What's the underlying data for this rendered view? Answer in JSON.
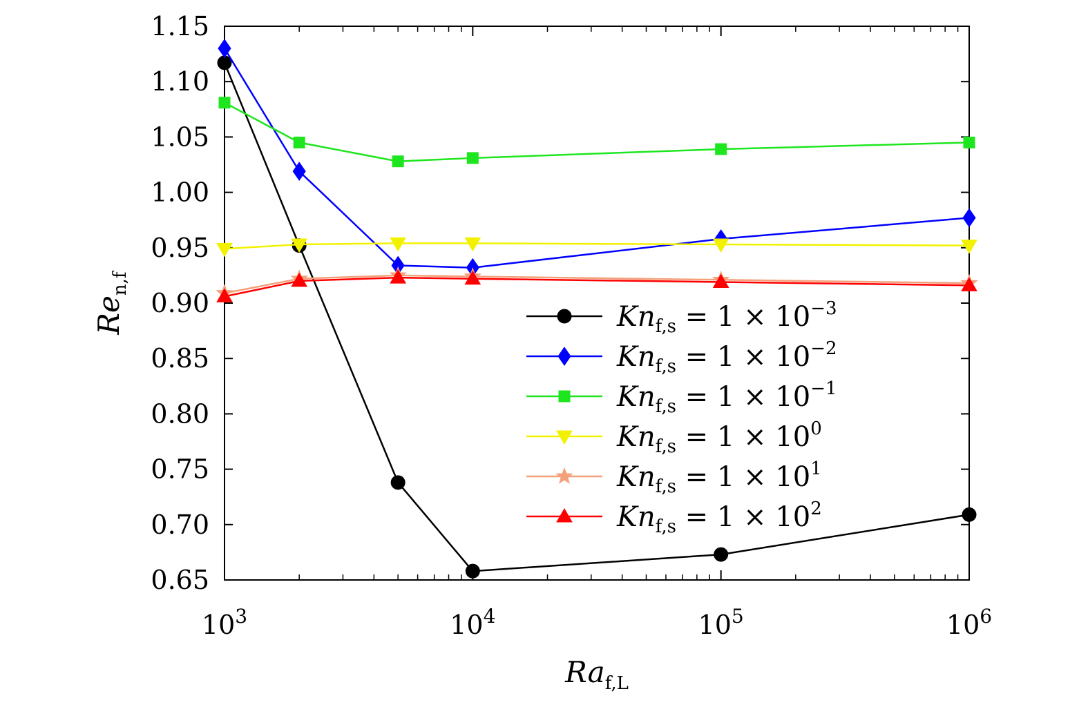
{
  "chart_data": {
    "type": "line",
    "x_scale": "log",
    "xlabel": {
      "main": "Ra",
      "sub": "f,L"
    },
    "ylabel": {
      "main": "Re",
      "sub": "n,f"
    },
    "xlim": [
      1000,
      1000000
    ],
    "ylim": [
      0.65,
      1.15
    ],
    "x_ticks": [
      {
        "value": 1000,
        "base": "10",
        "exp": "3"
      },
      {
        "value": 10000,
        "base": "10",
        "exp": "4"
      },
      {
        "value": 100000,
        "base": "10",
        "exp": "5"
      },
      {
        "value": 1000000,
        "base": "10",
        "exp": "6"
      }
    ],
    "y_ticks": [
      {
        "value": 0.65,
        "label": "0.65"
      },
      {
        "value": 0.7,
        "label": "0.70"
      },
      {
        "value": 0.75,
        "label": "0.75"
      },
      {
        "value": 0.8,
        "label": "0.80"
      },
      {
        "value": 0.85,
        "label": "0.85"
      },
      {
        "value": 0.9,
        "label": "0.90"
      },
      {
        "value": 0.95,
        "label": "0.95"
      },
      {
        "value": 1.0,
        "label": "1.00"
      },
      {
        "value": 1.05,
        "label": "1.05"
      },
      {
        "value": 1.1,
        "label": "1.10"
      },
      {
        "value": 1.15,
        "label": "1.15"
      }
    ],
    "x": [
      1000,
      2000,
      5000,
      10000,
      100000,
      1000000
    ],
    "legend_position": "right",
    "series": [
      {
        "name": "Kn_f,s = 1×10^-3",
        "legend": {
          "main": "Kn",
          "sub": "f,s",
          "rhs": " = 1 × 10",
          "exp": "−3"
        },
        "color": "#000000",
        "marker": "circle",
        "values": [
          1.117,
          0.952,
          0.738,
          0.658,
          0.673,
          0.709
        ]
      },
      {
        "name": "Kn_f,s = 1×10^-2",
        "legend": {
          "main": "Kn",
          "sub": "f,s",
          "rhs": " = 1 × 10",
          "exp": "−2"
        },
        "color": "#0000ff",
        "marker": "diamond",
        "values": [
          1.13,
          1.019,
          0.934,
          0.932,
          0.958,
          0.977
        ]
      },
      {
        "name": "Kn_f,s = 1×10^-1",
        "legend": {
          "main": "Kn",
          "sub": "f,s",
          "rhs": " = 1 × 10",
          "exp": "−1"
        },
        "color": "#1ee61e",
        "marker": "square",
        "values": [
          1.081,
          1.045,
          1.028,
          1.031,
          1.039,
          1.045
        ]
      },
      {
        "name": "Kn_f,s = 1×10^0",
        "legend": {
          "main": "Kn",
          "sub": "f,s",
          "rhs": " = 1 × 10",
          "exp": "0"
        },
        "color": "#f2f200",
        "marker": "triangle-down",
        "values": [
          0.949,
          0.953,
          0.954,
          0.954,
          0.953,
          0.952
        ]
      },
      {
        "name": "Kn_f,s = 1×10^1",
        "legend": {
          "main": "Kn",
          "sub": "f,s",
          "rhs": " = 1 × 10",
          "exp": "1"
        },
        "color": "#f4a07a",
        "marker": "star",
        "values": [
          0.909,
          0.922,
          0.925,
          0.924,
          0.921,
          0.918
        ]
      },
      {
        "name": "Kn_f,s = 1×10^2",
        "legend": {
          "main": "Kn",
          "sub": "f,s",
          "rhs": " = 1 × 10",
          "exp": "2"
        },
        "color": "#ff0000",
        "marker": "triangle-up",
        "values": [
          0.906,
          0.92,
          0.923,
          0.922,
          0.919,
          0.916
        ]
      }
    ]
  }
}
